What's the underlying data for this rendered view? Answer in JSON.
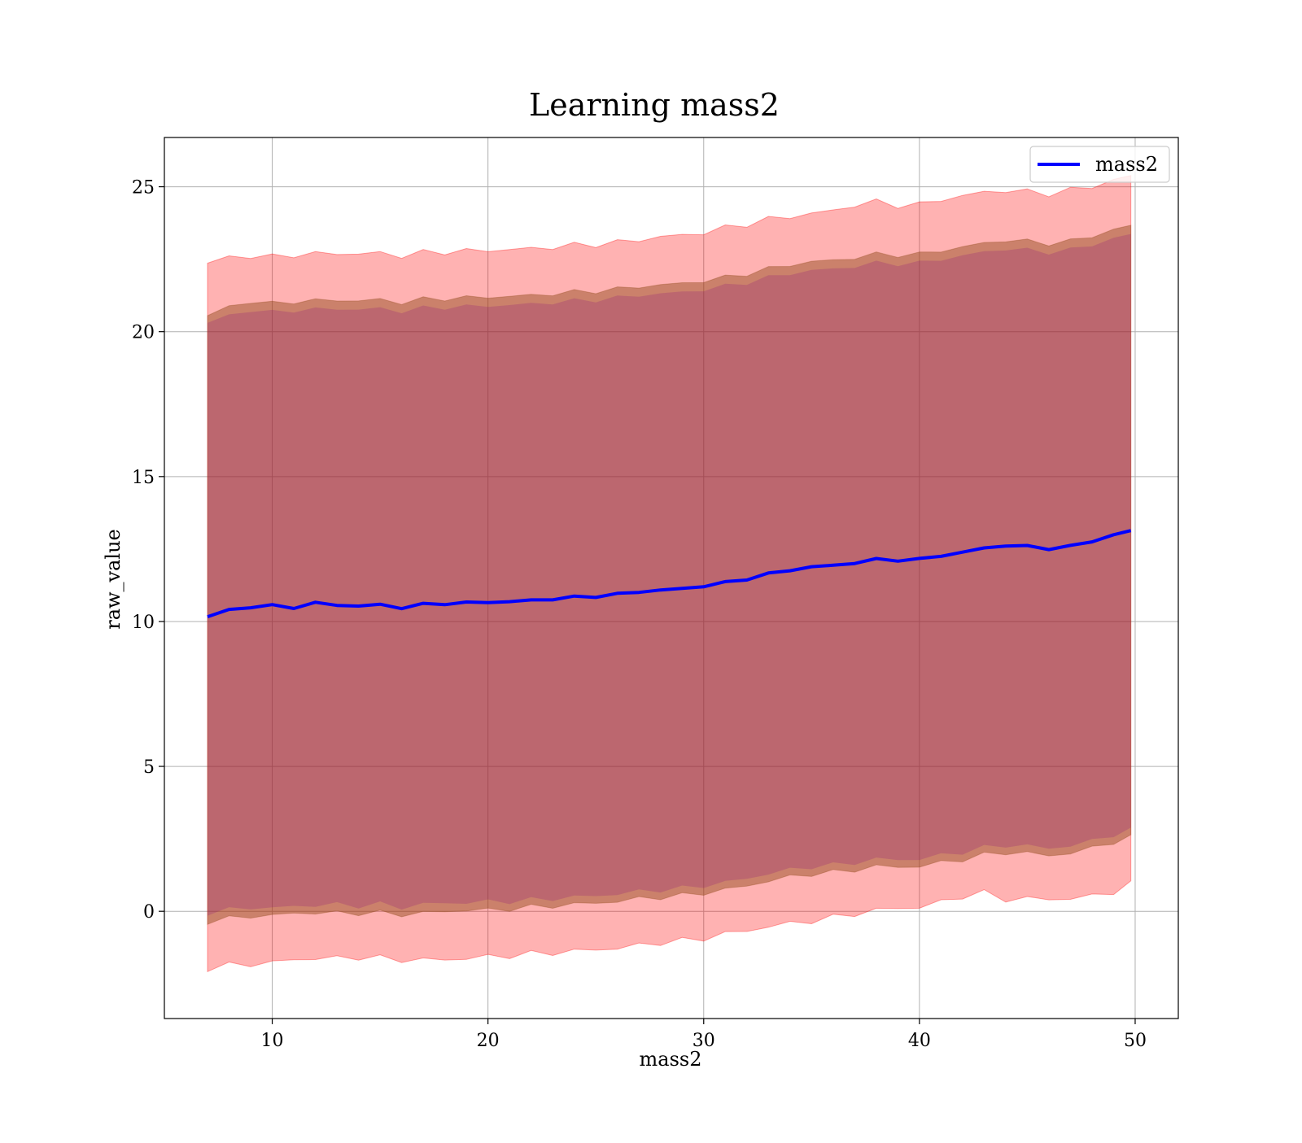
{
  "chart_data": {
    "type": "line",
    "title": "Learning mass2",
    "xlabel": "mass2",
    "ylabel": "raw_value",
    "xlim": [
      5,
      52
    ],
    "ylim": [
      -3.7,
      26.7
    ],
    "x_ticks": [
      10,
      20,
      30,
      40,
      50
    ],
    "y_ticks": [
      0,
      5,
      10,
      15,
      20,
      25
    ],
    "grid": true,
    "legend": {
      "placement": "upper right",
      "entries": [
        "mass2"
      ]
    },
    "x": [
      7,
      8,
      9,
      10,
      11,
      12,
      13,
      14,
      15,
      16,
      17,
      18,
      19,
      20,
      21,
      22,
      23,
      24,
      25,
      26,
      27,
      28,
      29,
      30,
      31,
      32,
      33,
      34,
      35,
      36,
      37,
      38,
      39,
      40,
      41,
      42,
      43,
      44,
      45,
      46,
      47,
      48,
      49,
      49.8
    ],
    "series": [
      {
        "name": "mass2",
        "color": "#0000ff",
        "values": [
          10.1,
          10.3,
          10.5,
          10.4,
          10.5,
          10.5,
          10.55,
          10.5,
          10.55,
          10.45,
          10.55,
          10.6,
          10.6,
          10.65,
          10.65,
          10.7,
          10.75,
          10.8,
          10.85,
          10.9,
          11.0,
          11.05,
          11.1,
          11.2,
          11.3,
          11.45,
          11.6,
          11.75,
          11.85,
          11.9,
          12.0,
          12.1,
          12.1,
          12.1,
          12.25,
          12.35,
          12.5,
          12.6,
          12.55,
          12.5,
          12.55,
          12.75,
          12.95,
          13.1
        ]
      }
    ],
    "bands": [
      {
        "color": "#ff0000",
        "opacity": 0.3,
        "lower": [
          -1.9,
          -1.8,
          -1.75,
          -1.7,
          -1.6,
          -1.55,
          -1.55,
          -1.5,
          -1.55,
          -1.6,
          -1.6,
          -1.6,
          -1.55,
          -1.5,
          -1.45,
          -1.4,
          -1.35,
          -1.3,
          -1.25,
          -1.2,
          -1.1,
          -1.0,
          -0.95,
          -0.85,
          -0.7,
          -0.6,
          -0.45,
          -0.35,
          -0.25,
          -0.15,
          0.0,
          0.1,
          0.2,
          0.2,
          0.4,
          0.6,
          0.7,
          0.5,
          0.5,
          0.5,
          0.5,
          0.6,
          0.75,
          1.0
        ]
      },
      {
        "color": "#8b4513",
        "opacity": 0.45,
        "lower": [
          -0.3,
          -0.2,
          -0.1,
          -0.1,
          0.0,
          0.0,
          0.0,
          0.0,
          0.0,
          -0.05,
          0.0,
          0.05,
          0.1,
          0.1,
          0.15,
          0.2,
          0.25,
          0.3,
          0.35,
          0.4,
          0.5,
          0.55,
          0.6,
          0.7,
          0.8,
          0.95,
          1.1,
          1.25,
          1.35,
          1.4,
          1.5,
          1.6,
          1.6,
          1.6,
          1.75,
          1.85,
          2.0,
          2.1,
          2.05,
          2.0,
          2.05,
          2.25,
          2.45,
          2.6
        ],
        "upper": [
          20.5,
          20.8,
          21.0,
          20.9,
          21.0,
          21.0,
          21.05,
          21.0,
          21.05,
          20.95,
          21.05,
          21.1,
          21.1,
          21.15,
          21.15,
          21.2,
          21.25,
          21.3,
          21.35,
          21.4,
          21.5,
          21.55,
          21.6,
          21.7,
          21.8,
          21.95,
          22.1,
          22.25,
          22.35,
          22.4,
          22.5,
          22.6,
          22.6,
          22.6,
          22.75,
          22.85,
          23.0,
          23.1,
          23.05,
          23.0,
          23.05,
          23.25,
          23.45,
          23.6
        ]
      },
      {
        "color": "#800080",
        "opacity": 0.2,
        "lower": [
          0.0,
          0.1,
          0.2,
          0.15,
          0.25,
          0.25,
          0.3,
          0.25,
          0.3,
          0.2,
          0.3,
          0.35,
          0.35,
          0.4,
          0.4,
          0.45,
          0.5,
          0.55,
          0.6,
          0.65,
          0.75,
          0.8,
          0.85,
          0.95,
          1.05,
          1.2,
          1.35,
          1.5,
          1.6,
          1.65,
          1.75,
          1.85,
          1.85,
          1.85,
          2.0,
          2.1,
          2.25,
          2.35,
          2.3,
          2.25,
          2.3,
          2.5,
          2.7,
          2.85
        ],
        "upper": [
          20.25,
          20.5,
          20.7,
          20.6,
          20.7,
          20.7,
          20.75,
          20.7,
          20.75,
          20.65,
          20.75,
          20.8,
          20.8,
          20.85,
          20.85,
          20.9,
          20.95,
          21.0,
          21.05,
          21.1,
          21.2,
          21.25,
          21.3,
          21.4,
          21.5,
          21.65,
          21.8,
          21.95,
          22.05,
          22.1,
          22.2,
          22.3,
          22.3,
          22.3,
          22.45,
          22.55,
          22.7,
          22.8,
          22.75,
          22.7,
          22.75,
          22.95,
          23.15,
          23.3
        ]
      }
    ],
    "red_upper": [
      22.3,
      22.5,
      22.55,
      22.5,
      22.6,
      22.6,
      22.65,
      22.6,
      22.65,
      22.55,
      22.65,
      22.7,
      22.7,
      22.75,
      22.75,
      22.8,
      22.85,
      22.9,
      22.95,
      23.0,
      23.1,
      23.2,
      23.25,
      23.35,
      23.5,
      23.65,
      23.8,
      23.9,
      24.0,
      24.1,
      24.3,
      24.4,
      24.3,
      24.3,
      24.5,
      24.6,
      24.75,
      24.8,
      24.75,
      24.7,
      24.8,
      24.95,
      25.15,
      25.3
    ]
  }
}
